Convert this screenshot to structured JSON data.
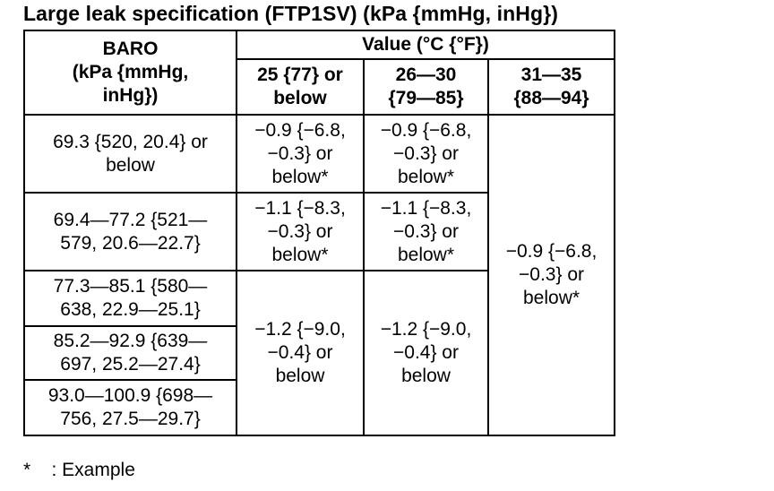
{
  "title": "Large leak specification (FTP1SV) (kPa {mmHg, inHg})",
  "table": {
    "header": {
      "baro": "BARO\n(kPa {mmHg,\ninHg})",
      "value_group": "Value (°C {°F})",
      "temp_columns": [
        "25 {77} or\nbelow",
        "26—30\n{79—85}",
        "31—35\n{88—94}"
      ]
    },
    "baro_ranges": [
      "69.3 {520, 20.4} or\nbelow",
      "69.4—77.2 {521—\n579, 20.6—22.7}",
      "77.3—85.1 {580—\n638, 22.9—25.1}",
      "85.2—92.9 {639—\n697, 25.2—27.4}",
      "93.0—100.9 {698—\n756, 27.5—29.7}"
    ],
    "values": {
      "r1_c1": "−0.9 {−6.8,\n−0.3} or\nbelow*",
      "r1_c2": "−0.9 {−6.8,\n−0.3} or\nbelow*",
      "r2_c1": "−1.1 {−8.3,\n−0.3} or\nbelow*",
      "r2_c2": "−1.1 {−8.3,\n−0.3} or\nbelow*",
      "r3to5_c1": "−1.2 {−9.0,\n−0.4} or\nbelow",
      "r3to5_c2": "−1.2 {−9.0,\n−0.4} or\nbelow",
      "all_c3": "−0.9 {−6.8,\n−0.3} or\nbelow*"
    }
  },
  "footnote": "*    : Example"
}
